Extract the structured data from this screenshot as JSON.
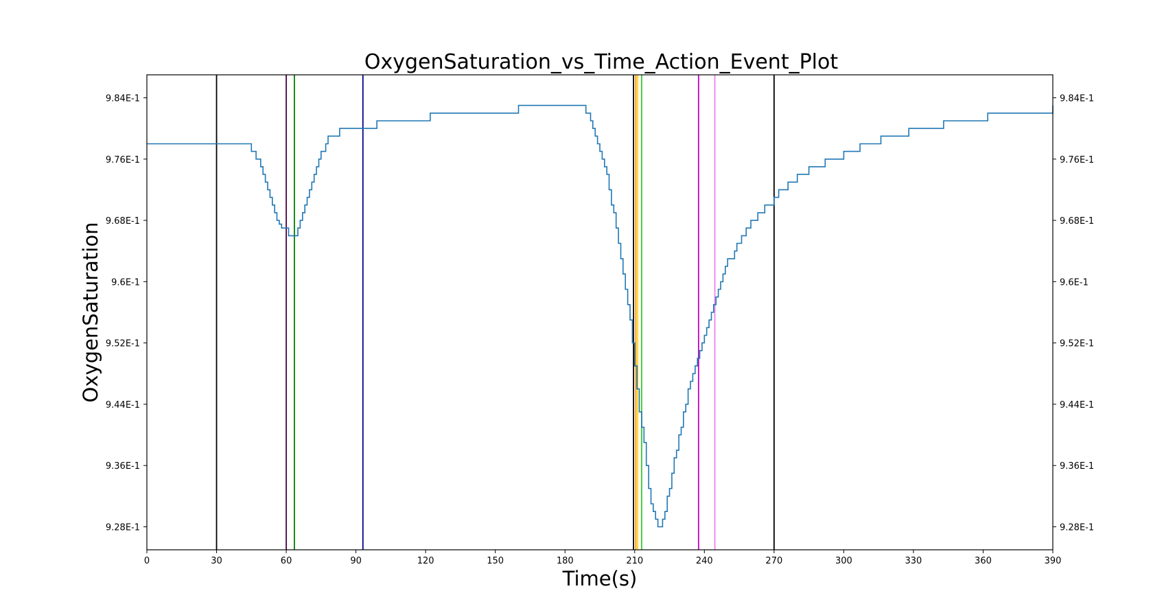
{
  "chart_data": {
    "type": "line",
    "title": "OxygenSaturation_vs_Time_Action_Event_Plot",
    "xlabel": "Time(s)",
    "ylabel": "OxygenSaturation",
    "xlim": [
      0,
      390
    ],
    "ylim": [
      0.925,
      0.987
    ],
    "x_ticks": [
      0,
      30,
      60,
      90,
      120,
      150,
      180,
      210,
      240,
      270,
      300,
      330,
      360,
      390
    ],
    "x_tick_labels": [
      "0",
      "30",
      "60",
      "90",
      "120",
      "150",
      "180",
      "210",
      "240",
      "270",
      "300",
      "330",
      "360",
      "390"
    ],
    "y_ticks": [
      0.928,
      0.936,
      0.944,
      0.952,
      0.96,
      0.968,
      0.976,
      0.984
    ],
    "y_tick_labels": [
      "9.28E-1",
      "9.36E-1",
      "9.44E-1",
      "9.52E-1",
      "9.6E-1",
      "9.68E-1",
      "9.76E-1",
      "9.84E-1"
    ],
    "grid": false,
    "secondary_y_axis": true,
    "series": [
      {
        "color": "#1f77b4",
        "x": [
          0,
          44,
          45,
          47,
          49,
          50,
          51,
          52,
          53,
          54,
          55,
          56,
          57,
          58,
          59,
          60,
          61,
          62,
          64,
          65,
          66,
          67,
          68,
          69,
          70,
          71,
          72,
          73,
          74,
          75,
          76,
          77,
          78,
          80,
          83,
          88,
          93,
          99,
          122,
          160,
          187,
          189,
          191,
          192,
          193,
          194,
          195,
          196,
          197,
          198,
          199,
          200,
          201,
          202,
          203,
          204,
          205,
          206,
          207,
          208,
          209,
          210,
          211,
          212,
          213,
          214,
          215,
          216,
          217,
          218,
          219,
          220,
          221,
          222,
          223,
          224,
          225,
          226,
          227,
          228,
          229,
          230,
          231,
          232,
          233,
          234,
          235,
          236,
          237,
          238,
          239,
          240,
          241,
          242,
          243,
          244,
          245,
          246,
          247,
          248,
          249,
          250,
          251,
          253,
          254,
          256,
          258,
          260,
          263,
          266,
          270,
          272,
          276,
          280,
          285,
          292,
          300,
          307,
          316,
          328,
          343,
          362,
          390
        ],
        "y": [
          0.978,
          0.978,
          0.977,
          0.976,
          0.975,
          0.974,
          0.973,
          0.972,
          0.971,
          0.97,
          0.969,
          0.968,
          0.9675,
          0.967,
          0.967,
          0.967,
          0.966,
          0.966,
          0.966,
          0.967,
          0.968,
          0.969,
          0.97,
          0.971,
          0.972,
          0.973,
          0.974,
          0.975,
          0.976,
          0.977,
          0.977,
          0.978,
          0.979,
          0.979,
          0.98,
          0.98,
          0.98,
          0.981,
          0.982,
          0.983,
          0.983,
          0.982,
          0.981,
          0.98,
          0.979,
          0.978,
          0.977,
          0.976,
          0.975,
          0.974,
          0.972,
          0.97,
          0.969,
          0.967,
          0.965,
          0.963,
          0.961,
          0.959,
          0.957,
          0.955,
          0.952,
          0.949,
          0.946,
          0.943,
          0.941,
          0.939,
          0.936,
          0.933,
          0.931,
          0.93,
          0.929,
          0.928,
          0.928,
          0.929,
          0.93,
          0.932,
          0.933,
          0.935,
          0.937,
          0.938,
          0.94,
          0.941,
          0.943,
          0.944,
          0.946,
          0.947,
          0.948,
          0.949,
          0.95,
          0.951,
          0.952,
          0.953,
          0.954,
          0.955,
          0.956,
          0.957,
          0.958,
          0.959,
          0.96,
          0.961,
          0.962,
          0.963,
          0.963,
          0.964,
          0.965,
          0.966,
          0.967,
          0.968,
          0.969,
          0.97,
          0.971,
          0.972,
          0.973,
          0.974,
          0.975,
          0.976,
          0.977,
          0.978,
          0.979,
          0.98,
          0.981,
          0.982,
          0.983
        ]
      }
    ],
    "event_lines": [
      {
        "x": 30,
        "color": "#000000"
      },
      {
        "x": 60,
        "color": "#4b0040"
      },
      {
        "x": 63.5,
        "color": "#008000"
      },
      {
        "x": 93,
        "color": "#00008b"
      },
      {
        "x": 209.5,
        "color": "#000000"
      },
      {
        "x": 210.5,
        "color": "#ff8c00"
      },
      {
        "x": 211.3,
        "color": "#ffd700"
      },
      {
        "x": 213,
        "color": "#32cd32"
      },
      {
        "x": 237.5,
        "color": "#c000c0"
      },
      {
        "x": 244.5,
        "color": "#ee82ee"
      },
      {
        "x": 270,
        "color": "#000000"
      }
    ]
  }
}
